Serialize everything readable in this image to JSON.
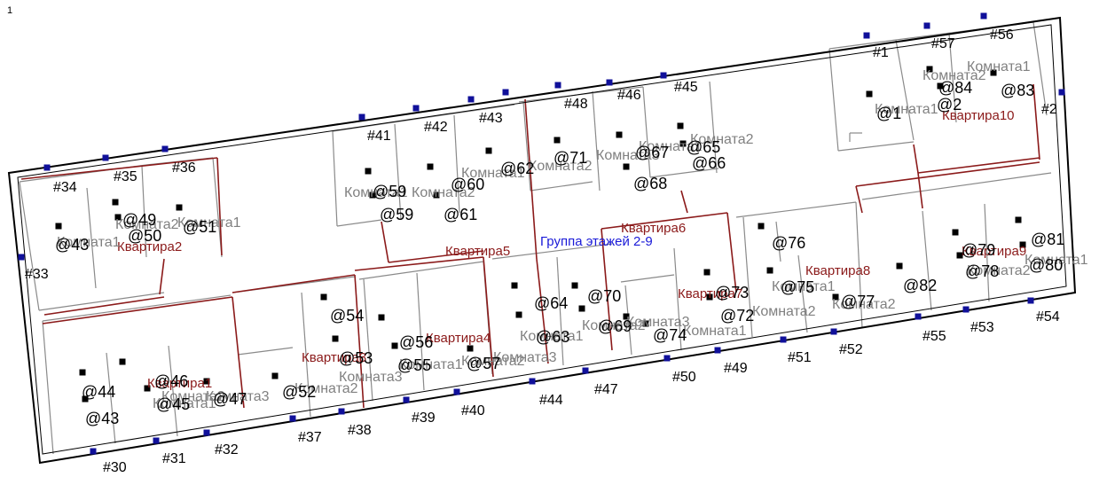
{
  "page_number": "1",
  "floor_group_label": "Группа этажей 2-9",
  "colors": {
    "outline": "#000000",
    "wall": "#8a8a8a",
    "apartment_boundary": "#8b1a1a",
    "apartment_label": "#8b1a1a",
    "room_label": "#808080",
    "number_label": "#000000",
    "station_marker": "#10109a",
    "point_marker": "#000000",
    "title": "#1a1ad8"
  },
  "apartments": [
    "Квартира1",
    "Квартира2",
    "Квартира3",
    "Квартира4",
    "Квартира5",
    "Квартира6",
    "Квартира7",
    "Квартира8",
    "Квартира9",
    "Квартира10"
  ],
  "rooms": [
    "Комната1",
    "Комната2",
    "Комната3",
    "Комната1",
    "Комната2",
    "Комната1",
    "Комната2",
    "Комната3",
    "Комната1",
    "Комната2",
    "Комната3",
    "Комната1",
    "Комната2",
    "Комната1",
    "Комната2",
    "Комната3",
    "Комната1",
    "Комната2",
    "Комната1",
    "Комната2",
    "Комната3",
    "Комната1",
    "Комната2",
    "Комната1",
    "Комната2",
    "Комната1",
    "Комната2",
    "Комната1",
    "Комната2",
    "Комната1",
    "Комната2"
  ],
  "station_labels": [
    "#1",
    "#2",
    "#30",
    "#31",
    "#32",
    "#33",
    "#34",
    "#35",
    "#36",
    "#37",
    "#38",
    "#39",
    "#40",
    "#41",
    "#42",
    "#43",
    "#44",
    "#45",
    "#46",
    "#47",
    "#48",
    "#49",
    "#50",
    "#51",
    "#52",
    "#53",
    "#54",
    "#55",
    "#56",
    "#57"
  ],
  "point_labels": [
    "@1",
    "@2",
    "@43",
    "@43",
    "@44",
    "@45",
    "@46",
    "@47",
    "@49",
    "@50",
    "@51",
    "@52",
    "@53",
    "@54",
    "@55",
    "@56",
    "@57",
    "@59",
    "@59",
    "@60",
    "@61",
    "@62",
    "@63",
    "@64",
    "@65",
    "@66",
    "@67",
    "@68",
    "@69",
    "@70",
    "@71",
    "@72",
    "@73",
    "@74",
    "@75",
    "@76",
    "@77",
    "@78",
    "@79",
    "@80",
    "@81",
    "@82",
    "@83",
    "@84"
  ]
}
